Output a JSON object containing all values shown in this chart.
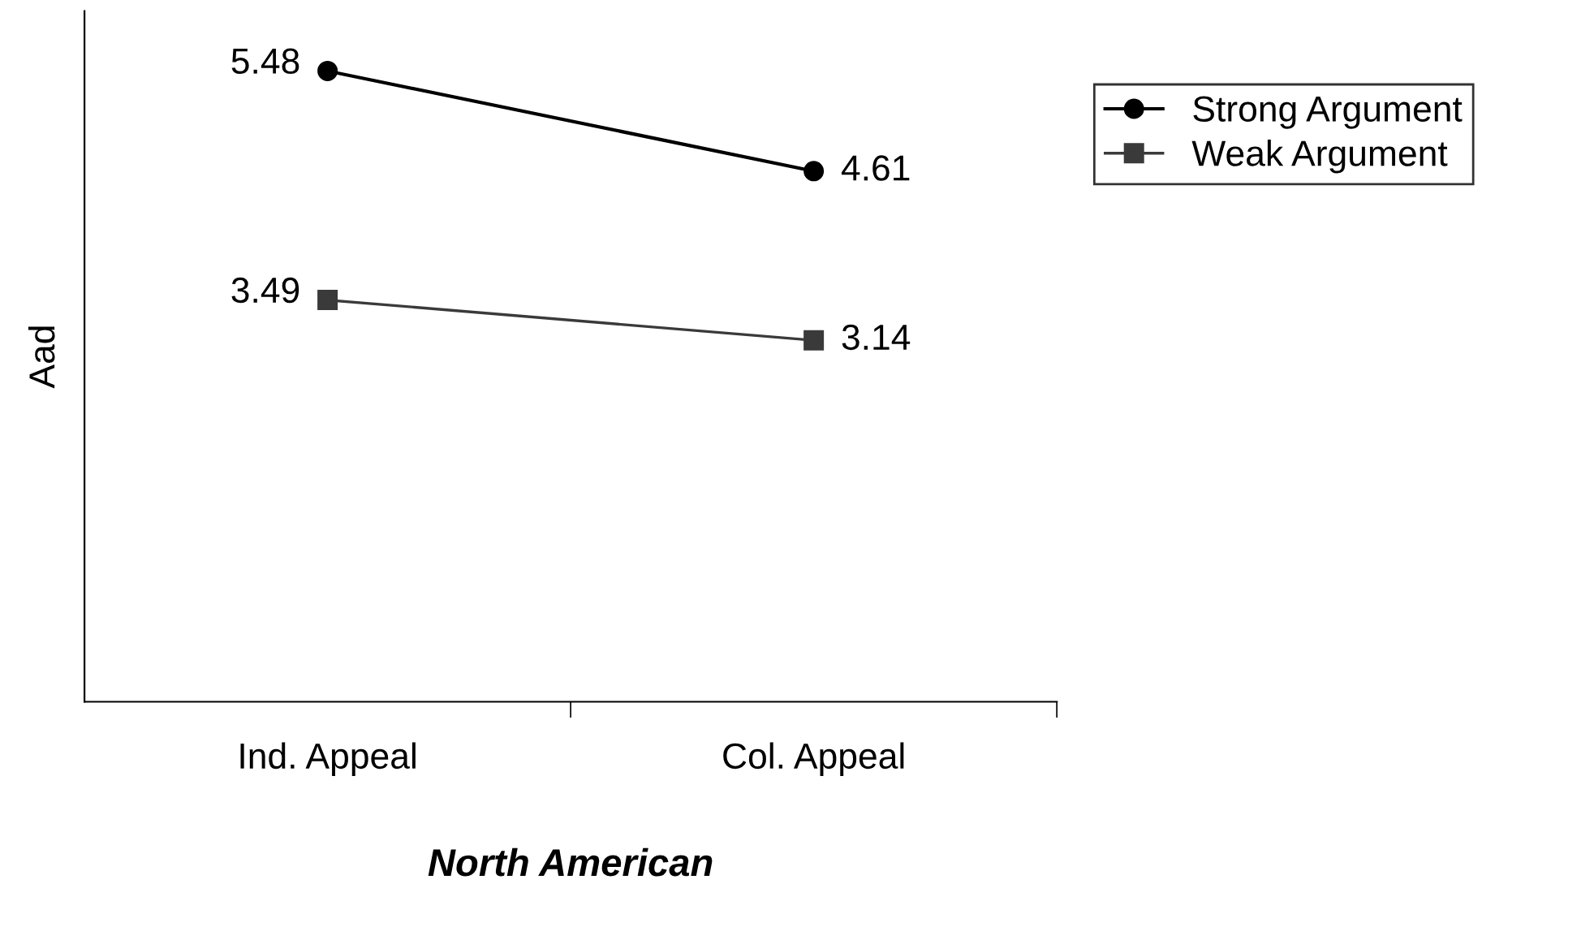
{
  "chart_data": {
    "type": "line",
    "xlabel": "North American",
    "ylabel": "Aad",
    "categories": [
      "Ind. Appeal",
      "Col. Appeal"
    ],
    "series": [
      {
        "name": "Strong Argument",
        "color": "#000000",
        "marker": "circle",
        "values": [
          5.48,
          4.61
        ]
      },
      {
        "name": "Weak Argument",
        "color": "#3a3a3a",
        "marker": "square",
        "values": [
          3.49,
          3.14
        ]
      }
    ],
    "ylim": [
      0,
      6
    ],
    "tick_labels": "x",
    "data_labels": true,
    "legend": "top right",
    "grid": false
  }
}
